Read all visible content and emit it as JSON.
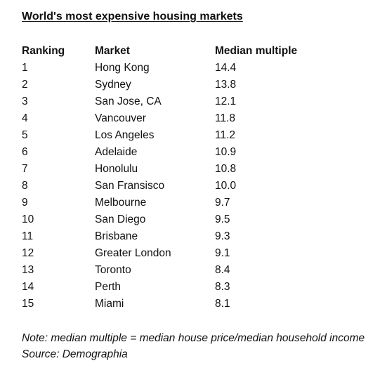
{
  "title": "World's most expensive housing markets",
  "table": {
    "headers": [
      "Ranking",
      "Market",
      "Median multiple"
    ],
    "rows": [
      [
        "1",
        "Hong Kong",
        "14.4"
      ],
      [
        "2",
        "Sydney",
        "13.8"
      ],
      [
        "3",
        "San Jose, CA",
        "12.1"
      ],
      [
        "4",
        "Vancouver",
        "11.8"
      ],
      [
        "5",
        "Los Angeles",
        "11.2"
      ],
      [
        "6",
        "Adelaide",
        "10.9"
      ],
      [
        "7",
        "Honolulu",
        "10.8"
      ],
      [
        "8",
        "San Fransisco",
        "10.0"
      ],
      [
        "9",
        "Melbourne",
        "9.7"
      ],
      [
        "10",
        "San Diego",
        "9.5"
      ],
      [
        "11",
        "Brisbane",
        "9.3"
      ],
      [
        "12",
        "Greater London",
        "9.1"
      ],
      [
        "13",
        "Toronto",
        "8.4"
      ],
      [
        "14",
        "Perth",
        "8.3"
      ],
      [
        "15",
        "Miami",
        "8.1"
      ]
    ]
  },
  "note": "Note: median multiple = median house price/median household income",
  "source": "Source: Demographia"
}
